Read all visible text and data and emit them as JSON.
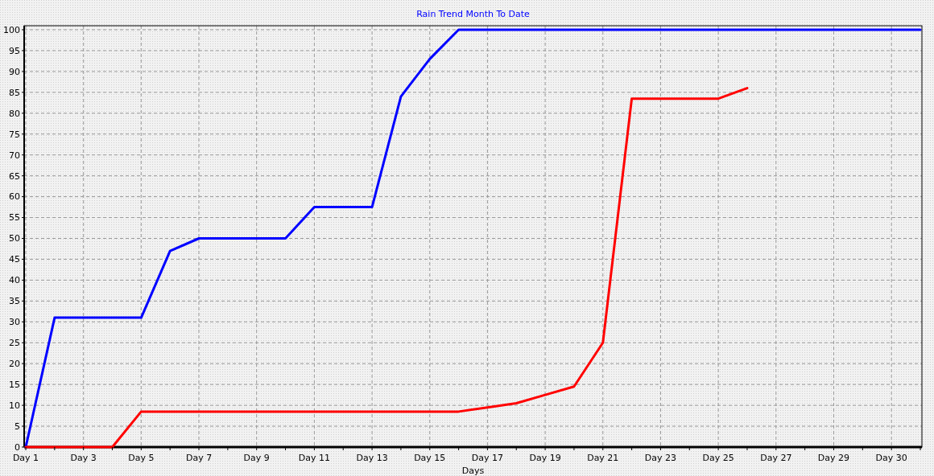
{
  "chart_data": {
    "type": "line",
    "title": "Rain Trend Month To Date",
    "xlabel": "Days",
    "categories": [
      "Day 1",
      null,
      "Day 3",
      null,
      "Day 5",
      null,
      "Day 7",
      null,
      "Day 9",
      null,
      "Day 11",
      null,
      "Day 13",
      null,
      "Day 15",
      null,
      "Day 17",
      null,
      "Day 19",
      null,
      "Day 21",
      null,
      "Day 23",
      null,
      "Day 25",
      null,
      "Day 27",
      null,
      "Day 29",
      null,
      "Day 30",
      null
    ],
    "series": [
      {
        "color": "#0000ff",
        "values": [
          0,
          31,
          31,
          31,
          31,
          47,
          50,
          50,
          50,
          50,
          57.5,
          57.5,
          57.5,
          84,
          93,
          100,
          100,
          100,
          100,
          100,
          100,
          100,
          100,
          100,
          100,
          100,
          100,
          100,
          100,
          100,
          100,
          100
        ]
      },
      {
        "color": "#ff0000",
        "values": [
          0,
          0,
          0,
          0,
          8.5,
          8.5,
          8.5,
          8.5,
          8.5,
          8.5,
          8.5,
          8.5,
          8.5,
          8.5,
          8.5,
          8.5,
          9.5,
          10.5,
          12.5,
          14.5,
          25,
          83.5,
          83.5,
          83.5,
          83.5,
          86,
          null,
          null,
          null,
          null,
          null,
          null
        ]
      }
    ],
    "ylim": [
      0,
      100
    ],
    "yticks": [
      0,
      5,
      10,
      15,
      20,
      25,
      30,
      35,
      40,
      45,
      50,
      55,
      60,
      65,
      70,
      75,
      80,
      85,
      90,
      95,
      100
    ],
    "grid": true,
    "marker": "none",
    "line_style": "solid"
  }
}
